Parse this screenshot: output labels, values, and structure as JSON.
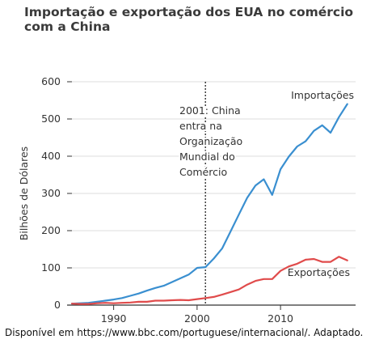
{
  "chart_data": {
    "type": "line",
    "title_lines": [
      "Importação e exportação dos EUA no comércio",
      "com a China"
    ],
    "ylabel": "Bilhões de Dólares",
    "xlabel": "",
    "xlim": [
      1985,
      2019
    ],
    "ylim": [
      0,
      600
    ],
    "yticks": [
      0,
      100,
      200,
      300,
      400,
      500,
      600
    ],
    "xticks": [
      1990,
      2000,
      2010
    ],
    "grid": true,
    "annotation": {
      "x": 2001,
      "lines": [
        "2001: China",
        "entra na",
        "Organização",
        "Mundial do",
        "Comércio"
      ]
    },
    "series": [
      {
        "name": "Importações",
        "color": "#3a8fd0",
        "x": [
          1985,
          1986,
          1987,
          1988,
          1989,
          1990,
          1991,
          1992,
          1993,
          1994,
          1995,
          1996,
          1997,
          1998,
          1999,
          2000,
          2001,
          2002,
          2003,
          2004,
          2005,
          2006,
          2007,
          2008,
          2009,
          2010,
          2011,
          2012,
          2013,
          2014,
          2015,
          2016,
          2017,
          2018
        ],
        "y": [
          4,
          5,
          6,
          9,
          12,
          15,
          19,
          25,
          31,
          39,
          46,
          52,
          62,
          72,
          82,
          100,
          102,
          125,
          152,
          197,
          243,
          288,
          321,
          338,
          296,
          365,
          399,
          426,
          440,
          468,
          483,
          463,
          505,
          540
        ]
      },
      {
        "name": "Exportações",
        "color": "#e04b4b",
        "x": [
          1985,
          1986,
          1987,
          1988,
          1989,
          1990,
          1991,
          1992,
          1993,
          1994,
          1995,
          1996,
          1997,
          1998,
          1999,
          2000,
          2001,
          2002,
          2003,
          2004,
          2005,
          2006,
          2007,
          2008,
          2009,
          2010,
          2011,
          2012,
          2013,
          2014,
          2015,
          2016,
          2017,
          2018
        ],
        "y": [
          4,
          3,
          3,
          5,
          6,
          5,
          6,
          7,
          9,
          9,
          12,
          12,
          13,
          14,
          13,
          16,
          19,
          22,
          28,
          35,
          42,
          55,
          65,
          70,
          70,
          92,
          104,
          111,
          122,
          124,
          116,
          116,
          130,
          120
        ]
      }
    ]
  },
  "source_text": "Disponível em https://www.bbc.com/portuguese/internacional/. Adaptado."
}
